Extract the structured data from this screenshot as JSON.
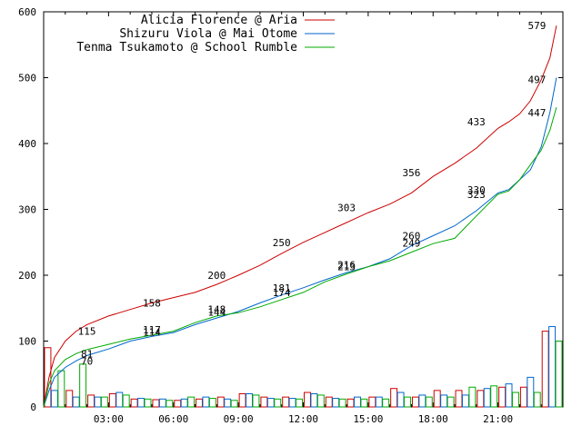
{
  "chart_data": {
    "type": "line",
    "title": "",
    "xlabel": "",
    "ylabel": "",
    "ylim": [
      0,
      600
    ],
    "xlim": [
      0,
      24
    ],
    "yticks": [
      "0",
      "100",
      "200",
      "300",
      "400",
      "500",
      "600"
    ],
    "xticks": [
      "03:00",
      "06:00",
      "09:00",
      "12:00",
      "15:00",
      "18:00",
      "21:00"
    ],
    "legend_position": "top-left",
    "grid": false,
    "series": [
      {
        "name": "Alicia Florence @ Aria",
        "color": "#cc0000",
        "x": [
          0,
          0.25,
          0.5,
          1,
          1.5,
          2,
          3,
          4,
          5,
          6,
          7,
          8,
          9,
          10,
          11,
          12,
          13,
          14,
          15,
          16,
          17,
          18,
          19,
          20,
          21,
          21.5,
          22,
          22.5,
          23,
          23.4,
          23.7
        ],
        "values": [
          0,
          45,
          75,
          100,
          115,
          125,
          138,
          148,
          158,
          166,
          174,
          186,
          200,
          215,
          233,
          250,
          265,
          280,
          295,
          308,
          325,
          350,
          370,
          393,
          423,
          433,
          445,
          465,
          497,
          530,
          579
        ]
      },
      {
        "name": "Shizuru Viola @ Mai Otome",
        "color": "#0066cc",
        "x": [
          0,
          0.25,
          0.5,
          1,
          1.5,
          2,
          3,
          4,
          5,
          6,
          7,
          8,
          9,
          10,
          11,
          12,
          13,
          14,
          15,
          16,
          17,
          18,
          19,
          20,
          21,
          21.5,
          22,
          22.5,
          23,
          23.4,
          23.7
        ],
        "values": [
          0,
          25,
          45,
          60,
          70,
          78,
          88,
          100,
          107,
          113,
          125,
          135,
          145,
          158,
          170,
          181,
          193,
          204,
          213,
          225,
          245,
          260,
          275,
          298,
          325,
          330,
          345,
          360,
          395,
          447,
          500
        ]
      },
      {
        "name": "Tenma Tsukamoto @ School Rumble",
        "color": "#00aa00",
        "x": [
          0,
          0.25,
          0.5,
          1,
          1.5,
          2,
          3,
          4,
          5,
          6,
          7,
          8,
          9,
          10,
          11,
          12,
          13,
          14,
          15,
          16,
          17,
          18,
          19,
          20,
          21,
          21.5,
          22,
          22.5,
          23,
          23.4,
          23.7
        ],
        "values": [
          0,
          35,
          55,
          72,
          81,
          87,
          95,
          103,
          109,
          115,
          128,
          138,
          143,
          152,
          163,
          174,
          190,
          202,
          213,
          222,
          235,
          248,
          256,
          290,
          323,
          328,
          345,
          368,
          390,
          420,
          455
        ]
      }
    ],
    "annotations": [
      {
        "x": 2.0,
        "y": 115,
        "text": "115"
      },
      {
        "x": 2.0,
        "y": 81,
        "text": "81"
      },
      {
        "x": 2.0,
        "y": 70,
        "text": "70"
      },
      {
        "x": 5.0,
        "y": 158,
        "text": "158"
      },
      {
        "x": 5.0,
        "y": 117,
        "text": "117"
      },
      {
        "x": 5.0,
        "y": 114,
        "text": "114"
      },
      {
        "x": 8.0,
        "y": 200,
        "text": "200"
      },
      {
        "x": 8.0,
        "y": 148,
        "text": "148"
      },
      {
        "x": 8.0,
        "y": 144,
        "text": "144"
      },
      {
        "x": 11.0,
        "y": 250,
        "text": "250"
      },
      {
        "x": 11.0,
        "y": 181,
        "text": "181"
      },
      {
        "x": 11.0,
        "y": 174,
        "text": "174"
      },
      {
        "x": 14.0,
        "y": 303,
        "text": "303"
      },
      {
        "x": 14.0,
        "y": 216,
        "text": "216"
      },
      {
        "x": 14.0,
        "y": 213,
        "text": "213"
      },
      {
        "x": 17.0,
        "y": 356,
        "text": "356"
      },
      {
        "x": 17.0,
        "y": 260,
        "text": "260"
      },
      {
        "x": 17.0,
        "y": 249,
        "text": "249"
      },
      {
        "x": 20.0,
        "y": 433,
        "text": "433"
      },
      {
        "x": 20.0,
        "y": 330,
        "text": "330"
      },
      {
        "x": 20.0,
        "y": 323,
        "text": "323"
      },
      {
        "x": 22.8,
        "y": 579,
        "text": "579"
      },
      {
        "x": 22.8,
        "y": 497,
        "text": "497"
      },
      {
        "x": 22.8,
        "y": 447,
        "text": "447"
      }
    ],
    "bars": {
      "type": "bar",
      "hours": [
        0,
        1,
        2,
        3,
        4,
        5,
        6,
        7,
        8,
        9,
        10,
        11,
        12,
        13,
        14,
        15,
        16,
        17,
        18,
        19,
        20,
        21,
        22,
        23
      ],
      "series": [
        {
          "color": "#cc0000",
          "values": [
            90,
            25,
            18,
            20,
            12,
            11,
            10,
            12,
            15,
            20,
            15,
            15,
            22,
            15,
            12,
            15,
            28,
            15,
            25,
            25,
            25,
            30,
            30,
            115
          ]
        },
        {
          "color": "#0066cc",
          "values": [
            25,
            15,
            15,
            22,
            13,
            12,
            12,
            15,
            12,
            20,
            13,
            13,
            20,
            13,
            15,
            15,
            22,
            18,
            18,
            18,
            28,
            35,
            45,
            122
          ]
        },
        {
          "color": "#00aa00",
          "values": [
            55,
            65,
            15,
            18,
            12,
            10,
            15,
            13,
            10,
            18,
            12,
            12,
            18,
            12,
            12,
            12,
            15,
            15,
            15,
            30,
            32,
            22,
            22,
            100
          ]
        }
      ]
    }
  }
}
